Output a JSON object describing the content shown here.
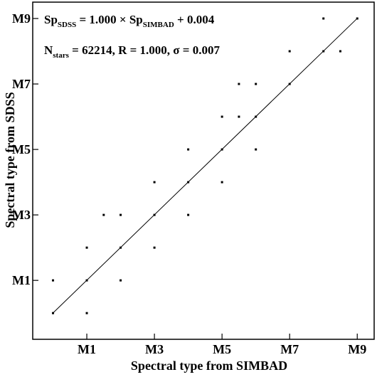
{
  "chart_data": {
    "type": "scatter",
    "title": "",
    "xlabel": "Spectral type from SIMBAD",
    "ylabel": "Spectral type from SDSS",
    "x_ticks": [
      {
        "value": 1,
        "label": "M1"
      },
      {
        "value": 3,
        "label": "M3"
      },
      {
        "value": 5,
        "label": "M5"
      },
      {
        "value": 7,
        "label": "M7"
      },
      {
        "value": 9,
        "label": "M9"
      }
    ],
    "y_ticks": [
      {
        "value": 1,
        "label": "M1"
      },
      {
        "value": 3,
        "label": "M3"
      },
      {
        "value": 5,
        "label": "M5"
      },
      {
        "value": 7,
        "label": "M7"
      },
      {
        "value": 9,
        "label": "M9"
      }
    ],
    "xlim": [
      -0.6,
      9.5
    ],
    "ylim": [
      -0.8,
      9.5
    ],
    "grid": false,
    "points": [
      {
        "x": 0,
        "y": 0
      },
      {
        "x": 0,
        "y": 1
      },
      {
        "x": 1,
        "y": 0
      },
      {
        "x": 1,
        "y": 1
      },
      {
        "x": 1,
        "y": 2
      },
      {
        "x": 1.5,
        "y": 3
      },
      {
        "x": 2,
        "y": 1
      },
      {
        "x": 2,
        "y": 2
      },
      {
        "x": 2,
        "y": 3
      },
      {
        "x": 3,
        "y": 2
      },
      {
        "x": 3,
        "y": 3
      },
      {
        "x": 3,
        "y": 4
      },
      {
        "x": 4,
        "y": 3
      },
      {
        "x": 4,
        "y": 4
      },
      {
        "x": 4,
        "y": 5
      },
      {
        "x": 5,
        "y": 4
      },
      {
        "x": 5,
        "y": 5
      },
      {
        "x": 5,
        "y": 6
      },
      {
        "x": 5.5,
        "y": 6
      },
      {
        "x": 5.5,
        "y": 7
      },
      {
        "x": 6,
        "y": 5
      },
      {
        "x": 6,
        "y": 6
      },
      {
        "x": 6,
        "y": 7
      },
      {
        "x": 7,
        "y": 7
      },
      {
        "x": 7,
        "y": 8
      },
      {
        "x": 8,
        "y": 8
      },
      {
        "x": 8,
        "y": 9
      },
      {
        "x": 8.5,
        "y": 8
      },
      {
        "x": 9,
        "y": 9
      }
    ],
    "fit": {
      "slope": 1.0,
      "intercept": 0.004,
      "x_range": [
        0,
        9
      ]
    },
    "annotation": {
      "line1": {
        "sp1": "Sp",
        "sub1": "SDSS",
        "mid": " = 1.000 × ",
        "sp2": "Sp",
        "sub2": "SIMBAD",
        "tail": " + 0.004"
      },
      "line2": {
        "n": "N",
        "nsub": "stars",
        "rest": " = 62214, R = 1.000, σ  = 0.007"
      }
    }
  }
}
